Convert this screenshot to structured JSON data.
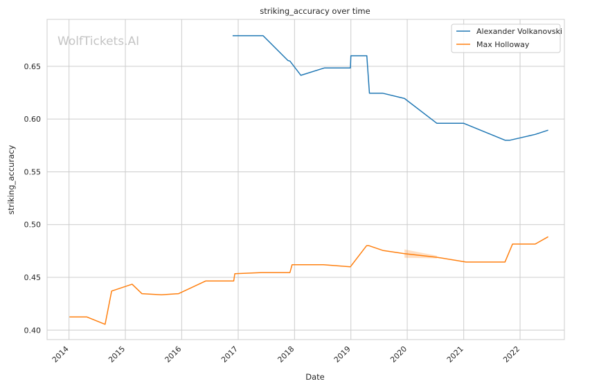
{
  "watermark": "WolfTickets.AI",
  "chart_data": {
    "type": "line",
    "title": "striking_accuracy over time",
    "xlabel": "Date",
    "ylabel": "striking_accuracy",
    "xlim": [
      "2013-08-12",
      "2022-10-15"
    ],
    "ylim": [
      0.391,
      0.6945
    ],
    "x_ticks": [
      "2014-01-01",
      "2015-01-01",
      "2016-01-01",
      "2017-01-01",
      "2018-01-01",
      "2019-01-01",
      "2020-01-01",
      "2021-01-01",
      "2022-01-01"
    ],
    "x_tick_labels": [
      "2014",
      "2015",
      "2016",
      "2017",
      "2018",
      "2019",
      "2020",
      "2021",
      "2022"
    ],
    "y_ticks": [
      0.4,
      0.45,
      0.5,
      0.55,
      0.6,
      0.65
    ],
    "y_tick_labels": [
      "0.40",
      "0.45",
      "0.50",
      "0.55",
      "0.60",
      "0.65"
    ],
    "grid": true,
    "legend_position": "top-right",
    "series": [
      {
        "name": "Alexander Volkanovski",
        "color": "#1f77b4",
        "points": [
          [
            "2016-11-26",
            0.679
          ],
          [
            "2017-06-11",
            0.679
          ],
          [
            "2017-11-19",
            0.6555
          ],
          [
            "2017-12-02",
            0.655
          ],
          [
            "2018-02-11",
            0.6415
          ],
          [
            "2018-07-14",
            0.6485
          ],
          [
            "2018-12-29",
            0.6485
          ],
          [
            "2019-01-01",
            0.66
          ],
          [
            "2019-04-14",
            0.66
          ],
          [
            "2019-05-01",
            0.6245
          ],
          [
            "2019-07-27",
            0.6245
          ],
          [
            "2019-12-14",
            0.6195
          ],
          [
            "2020-07-11",
            0.596
          ],
          [
            "2021-01-01",
            0.596
          ],
          [
            "2021-09-25",
            0.58
          ],
          [
            "2021-10-28",
            0.58
          ],
          [
            "2022-04-09",
            0.5855
          ],
          [
            "2022-07-02",
            0.5895
          ]
        ]
      },
      {
        "name": "Max Holloway",
        "color": "#ff7f0e",
        "points": [
          [
            "2014-01-04",
            0.4125
          ],
          [
            "2014-04-26",
            0.4125
          ],
          [
            "2014-08-23",
            0.4055
          ],
          [
            "2014-10-04",
            0.437
          ],
          [
            "2015-02-14",
            0.4435
          ],
          [
            "2015-04-18",
            0.4345
          ],
          [
            "2015-08-23",
            0.4335
          ],
          [
            "2015-12-12",
            0.4345
          ],
          [
            "2016-06-04",
            0.4465
          ],
          [
            "2016-12-03",
            0.4465
          ],
          [
            "2016-12-10",
            0.4535
          ],
          [
            "2017-06-03",
            0.4545
          ],
          [
            "2017-12-02",
            0.4545
          ],
          [
            "2017-12-16",
            0.462
          ],
          [
            "2018-07-07",
            0.462
          ],
          [
            "2018-12-29",
            0.46
          ],
          [
            "2019-04-13",
            0.48
          ],
          [
            "2019-04-27",
            0.48
          ],
          [
            "2019-07-27",
            0.4755
          ],
          [
            "2019-12-14",
            0.4725
          ],
          [
            "2020-07-11",
            0.469
          ],
          [
            "2021-01-16",
            0.4645
          ],
          [
            "2021-09-25",
            0.4645
          ],
          [
            "2021-11-13",
            0.4815
          ],
          [
            "2022-04-09",
            0.4815
          ],
          [
            "2022-07-02",
            0.4885
          ]
        ],
        "band": [
          [
            "2019-12-14",
            0.4685,
            0.4765
          ],
          [
            "2020-07-11",
            0.468,
            0.4705
          ]
        ]
      }
    ]
  }
}
